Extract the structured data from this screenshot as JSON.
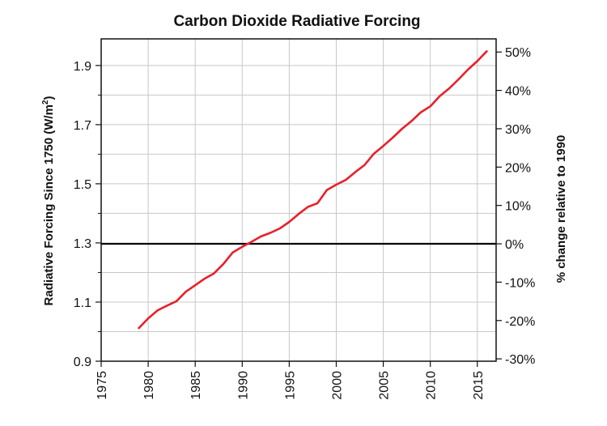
{
  "chart_data": {
    "type": "line",
    "title": "Carbon Dioxide Radiative Forcing",
    "ylabel": "Radiative Forcing Since 1750 (W/m²)",
    "ylabel_main": "Radiative Forcing Since 1750 (W/m",
    "ylabel_sup": "2",
    "ylabel_close": ")",
    "y2label": "% change relative to 1990",
    "xlim": [
      1975,
      2017
    ],
    "ylim": [
      0.9,
      1.99
    ],
    "grid": true,
    "x_ticks": [
      1975,
      1980,
      1985,
      1990,
      1995,
      2000,
      2005,
      2010,
      2015
    ],
    "x_tick_labels": [
      "1975",
      "1980",
      "1985",
      "1990",
      "1995",
      "2000",
      "2005",
      "2010",
      "2015"
    ],
    "y_ticks": [
      0.9,
      1.1,
      1.3,
      1.5,
      1.7,
      1.9
    ],
    "y_tick_labels": [
      "0.9",
      "1.1",
      "1.3",
      "1.5",
      "1.7",
      "1.9"
    ],
    "y2_ticks": [
      -30,
      -20,
      -10,
      0,
      10,
      20,
      30,
      40,
      50
    ],
    "y2_tick_labels": [
      "-30%",
      "-20%",
      "-10%",
      "0%",
      "10%",
      "20%",
      "30%",
      "40%",
      "50%"
    ],
    "y2_reference_value": 1.297,
    "reference_line_y": 1.297,
    "line_color": "#e8202a",
    "reference_line_color": "#000000",
    "grid_color": "#c8c8c8",
    "series": [
      {
        "x": [
          1979,
          1980,
          1981,
          1982,
          1983,
          1984,
          1985,
          1986,
          1987,
          1988,
          1989,
          1990,
          1991,
          1992,
          1993,
          1994,
          1995,
          1996,
          1997,
          1998,
          1999,
          2000,
          2001,
          2002,
          2003,
          2004,
          2005,
          2006,
          2007,
          2008,
          2009,
          2010,
          2011,
          2012,
          2013,
          2014,
          2015,
          2016
        ],
        "y": [
          1.012,
          1.045,
          1.072,
          1.088,
          1.103,
          1.135,
          1.157,
          1.179,
          1.197,
          1.229,
          1.268,
          1.287,
          1.304,
          1.322,
          1.334,
          1.349,
          1.371,
          1.398,
          1.422,
          1.434,
          1.479,
          1.497,
          1.513,
          1.539,
          1.563,
          1.602,
          1.628,
          1.656,
          1.686,
          1.712,
          1.742,
          1.762,
          1.796,
          1.822,
          1.853,
          1.886,
          1.915,
          1.948
        ]
      }
    ]
  }
}
